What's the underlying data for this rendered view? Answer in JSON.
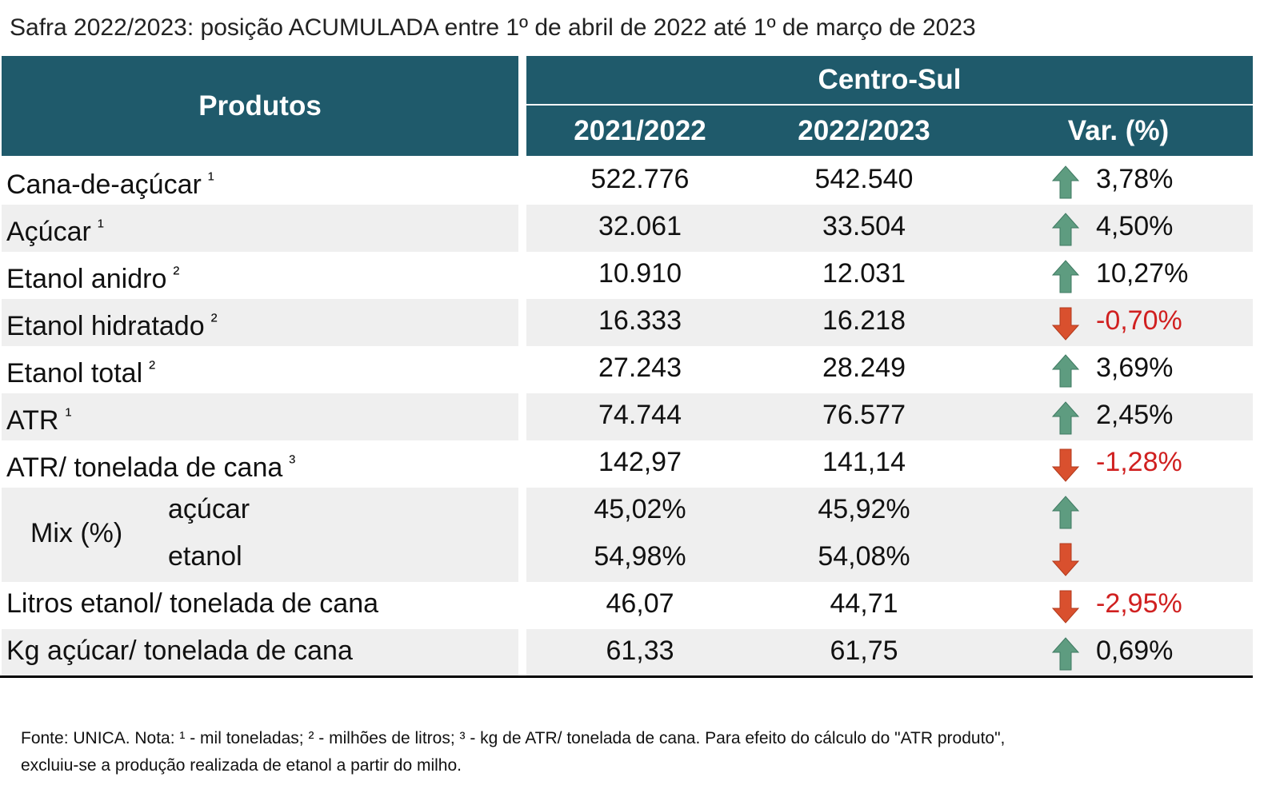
{
  "title": "Safra 2022/2023: posição ACUMULADA entre 1º de abril de 2022 até 1º de março de 2023",
  "header": {
    "products": "Produtos",
    "region": "Centro-Sul",
    "columns": [
      "2021/2022",
      "2022/2023",
      "Var. (%)"
    ]
  },
  "rows": [
    {
      "label": "Cana-de-açúcar",
      "note": "¹",
      "values": [
        "522.776",
        "542.540"
      ],
      "var": "3,78%",
      "trend": "up"
    },
    {
      "label": "Açúcar",
      "note": "¹",
      "values": [
        "32.061",
        "33.504"
      ],
      "var": "4,50%",
      "trend": "up"
    },
    {
      "label": "Etanol anidro",
      "note": "²",
      "values": [
        "10.910",
        "12.031"
      ],
      "var": "10,27%",
      "trend": "up"
    },
    {
      "label": "Etanol hidratado",
      "note": "²",
      "values": [
        "16.333",
        "16.218"
      ],
      "var": "-0,70%",
      "trend": "down"
    },
    {
      "label": "Etanol total",
      "note": "²",
      "values": [
        "27.243",
        "28.249"
      ],
      "var": "3,69%",
      "trend": "up"
    },
    {
      "label": "ATR",
      "note": "¹",
      "values": [
        "74.744",
        "76.577"
      ],
      "var": "2,45%",
      "trend": "up"
    },
    {
      "label": "ATR/ tonelada de cana",
      "note": "³",
      "values": [
        "142,97",
        "141,14"
      ],
      "var": "-1,28%",
      "trend": "down"
    },
    {
      "label": "Mix (%)",
      "sub": [
        {
          "label": "açúcar",
          "values": [
            "45,02%",
            "45,92%"
          ],
          "trend": "up"
        },
        {
          "label": "etanol",
          "values": [
            "54,98%",
            "54,08%"
          ],
          "trend": "down"
        }
      ]
    },
    {
      "label": "Litros etanol/ tonelada de cana",
      "values": [
        "46,07",
        "44,71"
      ],
      "var": "-2,95%",
      "trend": "down"
    },
    {
      "label": "Kg açúcar/ tonelada de cana",
      "values": [
        "61,33",
        "61,75"
      ],
      "var": "0,69%",
      "trend": "up"
    }
  ],
  "footnote": [
    "Fonte: UNICA. Nota: ¹ - mil toneladas; ² - milhões de litros; ³ - kg de ATR/ tonelada de cana. Para efeito do cálculo do \"ATR produto\",",
    "excluiu-se a produção realizada de etanol a partir do milho."
  ]
}
